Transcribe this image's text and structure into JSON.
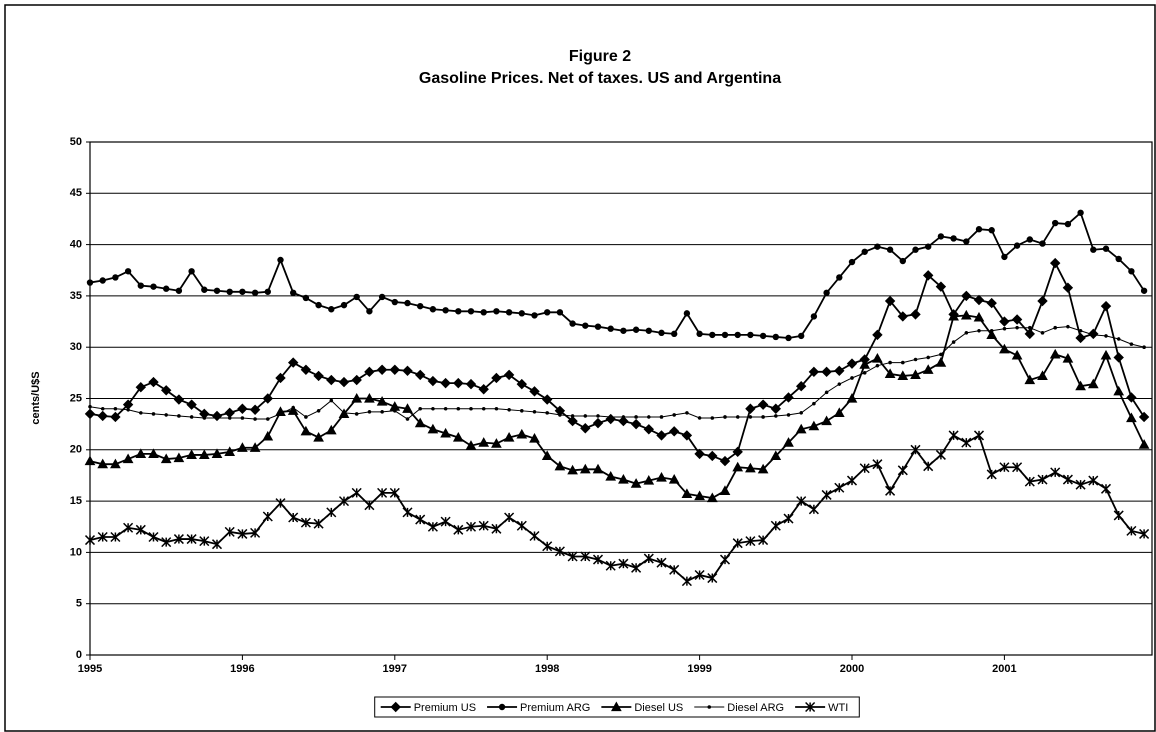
{
  "chart_data": {
    "type": "line",
    "title": "Figure 2",
    "subtitle": "Gasoline Prices. Net of taxes. US and Argentina",
    "y_label": "cents/U$S",
    "categories": [
      "1995",
      null,
      null,
      null,
      null,
      null,
      null,
      null,
      null,
      null,
      null,
      null,
      "1996",
      null,
      null,
      null,
      null,
      null,
      null,
      null,
      null,
      null,
      null,
      null,
      "1997",
      null,
      null,
      null,
      null,
      null,
      null,
      null,
      null,
      null,
      null,
      null,
      "1998",
      null,
      null,
      null,
      null,
      null,
      null,
      null,
      null,
      null,
      null,
      null,
      "1999",
      null,
      null,
      null,
      null,
      null,
      null,
      null,
      null,
      null,
      null,
      null,
      "2000",
      null,
      null,
      null,
      null,
      null,
      null,
      null,
      null,
      null,
      null,
      null,
      "2001",
      null,
      null,
      null,
      null,
      null,
      null,
      null,
      null,
      null,
      null,
      null
    ],
    "ylim": [
      0,
      50
    ],
    "yticks": [
      0,
      5,
      10,
      15,
      20,
      25,
      30,
      35,
      40,
      45,
      50
    ],
    "grid": true,
    "legend": "bottom",
    "series": [
      {
        "name": "Premium US",
        "color": "#000000",
        "marker": "diamond",
        "values": [
          23.5,
          23.3,
          23.2,
          24.4,
          26.1,
          26.6,
          25.8,
          24.9,
          24.4,
          23.5,
          23.3,
          23.6,
          24,
          23.9,
          25,
          27,
          28.5,
          27.8,
          27.2,
          26.8,
          26.6,
          26.8,
          27.6,
          27.8,
          27.8,
          27.7,
          27.3,
          26.7,
          26.5,
          26.5,
          26.4,
          25.9,
          27,
          27.3,
          26.4,
          25.7,
          24.9,
          23.8,
          22.8,
          22.1,
          22.6,
          23,
          22.8,
          22.5,
          22,
          21.4,
          21.8,
          21.4,
          19.6,
          19.4,
          18.9,
          19.8,
          24,
          24.4,
          24,
          25.1,
          26.2,
          27.6,
          27.6,
          27.7,
          28.4,
          28.8,
          31.2,
          34.5,
          33,
          33.2,
          37,
          35.9,
          33.2,
          35,
          34.6,
          34.3,
          32.5,
          32.7,
          31.3,
          34.5,
          38.2,
          35.8,
          30.9,
          31.3,
          34,
          29,
          25.1,
          23.2
        ]
      },
      {
        "name": "Premium ARG",
        "color": "#000000",
        "marker": "circle",
        "values": [
          36.3,
          36.5,
          36.8,
          37.4,
          36,
          35.9,
          35.7,
          35.5,
          37.4,
          35.6,
          35.5,
          35.4,
          35.4,
          35.3,
          35.4,
          38.5,
          35.3,
          34.8,
          34.1,
          33.7,
          34.1,
          34.9,
          33.5,
          34.9,
          34.4,
          34.3,
          34,
          33.7,
          33.6,
          33.5,
          33.5,
          33.4,
          33.5,
          33.4,
          33.3,
          33.1,
          33.4,
          33.4,
          32.3,
          32.1,
          32,
          31.8,
          31.6,
          31.7,
          31.6,
          31.4,
          31.3,
          33.3,
          31.3,
          31.2,
          31.2,
          31.2,
          31.2,
          31.1,
          31,
          30.9,
          31.1,
          33,
          35.3,
          36.8,
          38.3,
          39.3,
          39.8,
          39.5,
          38.4,
          39.5,
          39.8,
          40.8,
          40.6,
          40.3,
          41.5,
          41.4,
          38.8,
          39.9,
          40.5,
          40.1,
          42.1,
          42,
          43.1,
          39.5,
          39.6,
          38.6,
          37.4,
          35.5
        ]
      },
      {
        "name": "Diesel US",
        "color": "#000000",
        "marker": "triangle",
        "values": [
          18.9,
          18.6,
          18.6,
          19.1,
          19.6,
          19.6,
          19.1,
          19.2,
          19.5,
          19.5,
          19.6,
          19.8,
          20.2,
          20.2,
          21.3,
          23.7,
          23.8,
          21.8,
          21.2,
          21.9,
          23.5,
          25,
          25,
          24.7,
          24.2,
          24,
          22.6,
          22,
          21.6,
          21.2,
          20.4,
          20.7,
          20.6,
          21.2,
          21.5,
          21.1,
          19.4,
          18.4,
          18,
          18.1,
          18.1,
          17.4,
          17.1,
          16.7,
          17,
          17.3,
          17.1,
          15.7,
          15.5,
          15.3,
          16,
          18.3,
          18.2,
          18.1,
          19.4,
          20.7,
          22,
          22.3,
          22.8,
          23.6,
          25,
          28.3,
          28.9,
          27.4,
          27.2,
          27.3,
          27.8,
          28.5,
          33,
          33.1,
          32.9,
          31.2,
          29.8,
          29.2,
          26.8,
          27.2,
          29.3,
          28.9,
          26.2,
          26.4,
          29.2,
          25.7,
          23.1,
          20.5
        ]
      },
      {
        "name": "Diesel ARG",
        "color": "#000000",
        "marker": "dot",
        "values": [
          24.2,
          24,
          24,
          23.9,
          23.6,
          23.5,
          23.4,
          23.3,
          23.2,
          23.1,
          23.1,
          23.1,
          23.1,
          23,
          23,
          23.5,
          24.1,
          23.2,
          23.8,
          24.8,
          23.6,
          23.5,
          23.7,
          23.7,
          23.8,
          23,
          24,
          24,
          24,
          24,
          24,
          24,
          24,
          23.9,
          23.8,
          23.7,
          23.6,
          23.4,
          23.3,
          23.3,
          23.3,
          23.2,
          23.2,
          23.2,
          23.2,
          23.2,
          23.4,
          23.6,
          23.1,
          23.1,
          23.2,
          23.2,
          23.2,
          23.2,
          23.3,
          23.4,
          23.6,
          24.5,
          25.6,
          26.4,
          27,
          27.5,
          28.2,
          28.5,
          28.5,
          28.8,
          29,
          29.3,
          30.5,
          31.4,
          31.6,
          31.6,
          31.8,
          31.9,
          31.9,
          31.4,
          31.9,
          32,
          31.6,
          31.2,
          31.1,
          30.8,
          30.3,
          30
        ]
      },
      {
        "name": "WTI",
        "color": "#000000",
        "marker": "star",
        "values": [
          11.2,
          11.5,
          11.5,
          12.4,
          12.2,
          11.5,
          11,
          11.3,
          11.3,
          11.1,
          10.8,
          12,
          11.8,
          11.9,
          13.5,
          14.8,
          13.4,
          12.9,
          12.8,
          13.9,
          15,
          15.8,
          14.6,
          15.8,
          15.8,
          13.9,
          13.2,
          12.5,
          13,
          12.2,
          12.5,
          12.6,
          12.3,
          13.4,
          12.6,
          11.6,
          10.6,
          10.1,
          9.6,
          9.6,
          9.3,
          8.7,
          8.9,
          8.5,
          9.4,
          9,
          8.3,
          7.2,
          7.8,
          7.5,
          9.3,
          10.9,
          11.1,
          11.2,
          12.6,
          13.3,
          15,
          14.2,
          15.6,
          16.3,
          17,
          18.2,
          18.6,
          16,
          18,
          20,
          18.4,
          19.5,
          21.4,
          20.7,
          21.4,
          17.6,
          18.3,
          18.3,
          16.9,
          17.1,
          17.8,
          17.1,
          16.6,
          17,
          16.2,
          13.6,
          12.1,
          11.8
        ]
      }
    ]
  }
}
